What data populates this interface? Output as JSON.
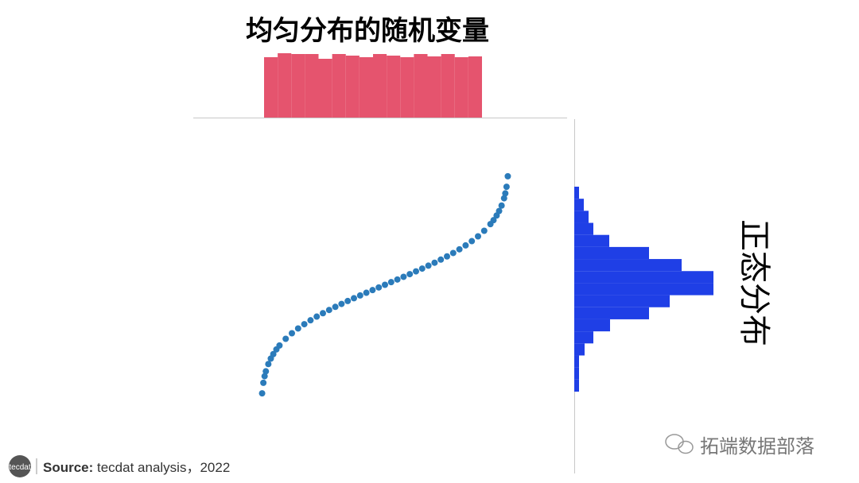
{
  "chart_data": [
    {
      "type": "histogram",
      "title": "均匀分布的随机变量",
      "color": "#e5546e",
      "orientation": "vertical",
      "bins": [
        0,
        0.0625,
        0.125,
        0.1875,
        0.25,
        0.3125,
        0.375,
        0.4375,
        0.5,
        0.5625,
        0.625,
        0.6875,
        0.75,
        0.8125,
        0.875,
        0.9375,
        1
      ],
      "values": [
        76,
        81,
        80,
        80,
        74,
        80,
        78,
        76,
        80,
        78,
        76,
        80,
        77,
        80,
        76,
        77
      ],
      "xlim": [
        0,
        1
      ],
      "ylim": [
        0,
        90
      ]
    },
    {
      "type": "scatter",
      "color": "#2b7bba",
      "x": [
        0.005,
        0.01,
        0.015,
        0.02,
        0.03,
        0.04,
        0.05,
        0.0625,
        0.075,
        0.1,
        0.125,
        0.15,
        0.175,
        0.2,
        0.225,
        0.25,
        0.275,
        0.3,
        0.325,
        0.35,
        0.375,
        0.4,
        0.425,
        0.45,
        0.475,
        0.5,
        0.525,
        0.55,
        0.575,
        0.6,
        0.625,
        0.65,
        0.675,
        0.7,
        0.725,
        0.75,
        0.775,
        0.8,
        0.825,
        0.85,
        0.875,
        0.9,
        0.925,
        0.9375,
        0.95,
        0.96,
        0.97,
        0.98,
        0.985,
        0.99,
        0.995
      ],
      "values": [
        -2.576,
        -2.326,
        -2.17,
        -2.054,
        -1.881,
        -1.751,
        -1.645,
        -1.534,
        -1.44,
        -1.282,
        -1.15,
        -1.036,
        -0.935,
        -0.842,
        -0.755,
        -0.674,
        -0.598,
        -0.524,
        -0.454,
        -0.385,
        -0.319,
        -0.253,
        -0.189,
        -0.126,
        -0.063,
        0,
        0.063,
        0.126,
        0.189,
        0.253,
        0.319,
        0.385,
        0.454,
        0.524,
        0.598,
        0.674,
        0.755,
        0.842,
        0.935,
        1.036,
        1.15,
        1.282,
        1.44,
        1.534,
        1.645,
        1.751,
        1.881,
        2.054,
        2.17,
        2.326,
        2.576
      ],
      "xlim": [
        0,
        1
      ],
      "ylim": [
        -2.8,
        2.8
      ]
    },
    {
      "type": "histogram",
      "title": "正态分布",
      "color": "#1f3fe6",
      "orientation": "horizontal",
      "bins": [
        -2.58,
        -2.29,
        -2.0,
        -1.71,
        -1.42,
        -1.13,
        -0.84,
        -0.55,
        -0.26,
        0.03,
        0.32,
        0.61,
        0.9,
        1.19,
        1.48,
        1.77,
        2.06,
        2.35
      ],
      "values": [
        6,
        6,
        6,
        13,
        24,
        45,
        94,
        120,
        175,
        175,
        135,
        94,
        44,
        24,
        18,
        12,
        6
      ],
      "xlim": [
        0,
        180
      ],
      "ylim": [
        -2.58,
        2.35
      ]
    }
  ],
  "footer": {
    "logo": "tecdat",
    "source_label": "Source:",
    "source_text": "tecdat analysis，2022",
    "watermark": "拓端数据部落"
  }
}
